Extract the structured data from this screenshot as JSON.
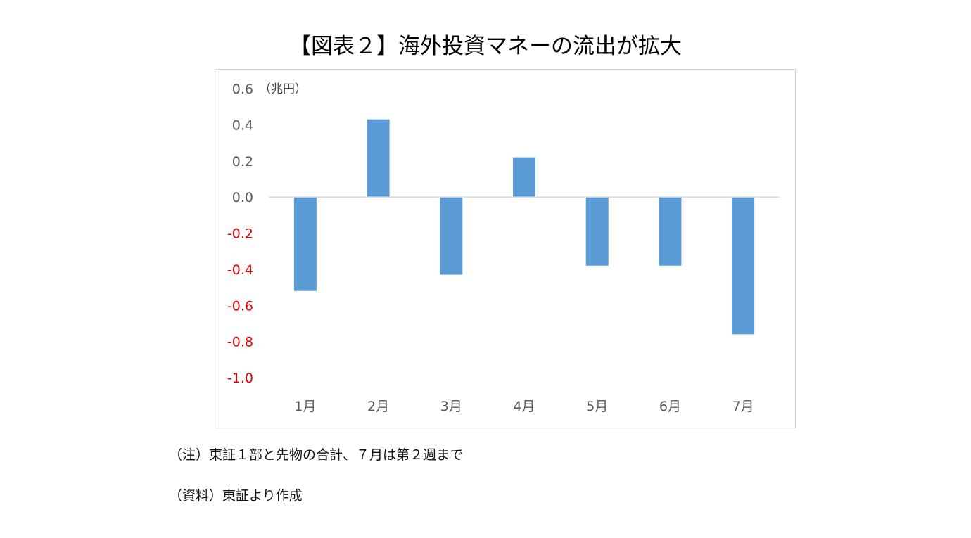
{
  "title": "【図表２】海外投資マネーの流出が拡大",
  "notes": {
    "note": "（注）東証１部と先物の合計、７月は第２週まで",
    "source": "（資料）東証より作成"
  },
  "colors": {
    "bar": "#5b9bd5",
    "negative_tick": "#e00000",
    "positive_tick": "#595959",
    "axis": "#d9d9d9"
  },
  "chart_data": {
    "type": "bar",
    "unit_label": "（兆円）",
    "categories": [
      "1月",
      "2月",
      "3月",
      "4月",
      "5月",
      "6月",
      "7月"
    ],
    "values": [
      -0.52,
      0.43,
      -0.43,
      0.22,
      -0.38,
      -0.38,
      -0.76
    ],
    "ylim": [
      -1.0,
      0.6
    ],
    "yticks": [
      "0.6",
      "0.4",
      "0.2",
      "0.0",
      "-0.2",
      "-0.4",
      "-0.6",
      "-0.8",
      "-1.0"
    ],
    "grid": false,
    "legend": "none"
  }
}
